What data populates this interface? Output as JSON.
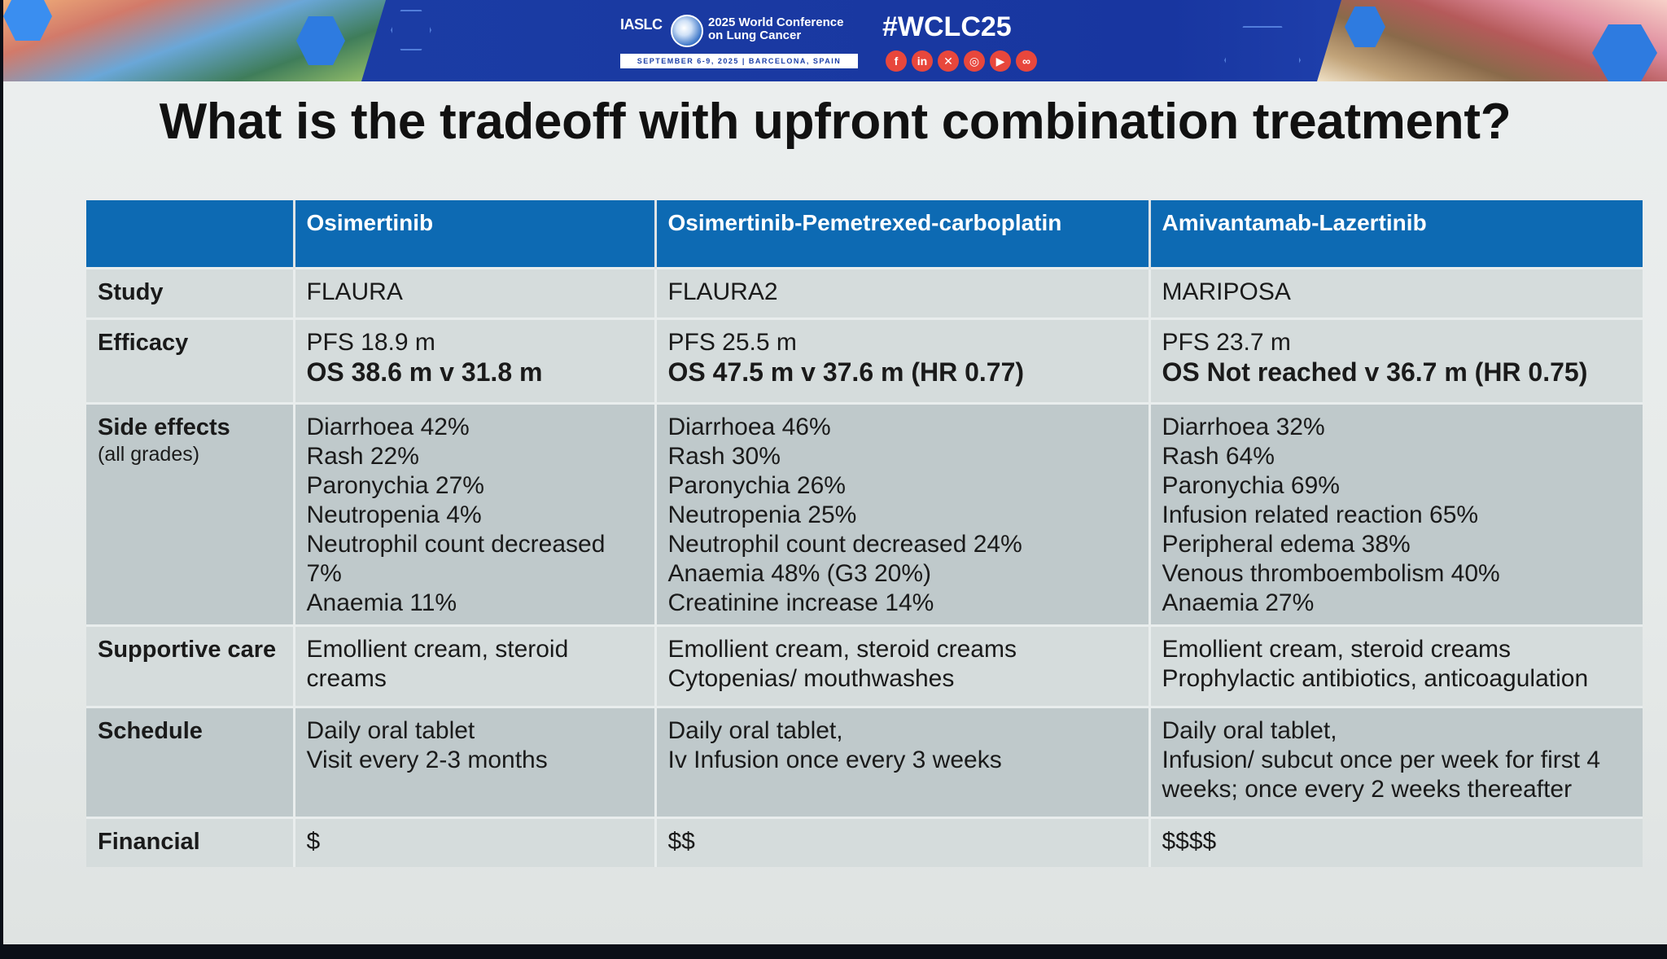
{
  "banner": {
    "org": "IASLC",
    "conference": "2025 World Conference\non Lung Cancer",
    "dates": "SEPTEMBER 6-9, 2025 | BARCELONA, SPAIN",
    "hashtag": "#WCLC25",
    "social_icons": [
      "facebook-icon",
      "linkedin-icon",
      "x-icon",
      "instagram-icon",
      "youtube-icon",
      "link-icon"
    ]
  },
  "title": "What is the tradeoff with upfront combination treatment?",
  "table": {
    "headers": [
      "",
      "Osimertinib",
      "Osimertinib-Pemetrexed-carboplatin",
      "Amivantamab-Lazertinib"
    ],
    "rows": {
      "study": {
        "label": "Study",
        "cells": [
          "FLAURA",
          "FLAURA2",
          "MARIPOSA"
        ]
      },
      "efficacy": {
        "label": "Efficacy",
        "pfs": [
          "PFS 18.9 m",
          "PFS 25.5  m",
          "PFS 23.7 m"
        ],
        "os": [
          "OS 38.6 m v 31.8 m",
          "OS 47.5 m v 37.6 m (HR 0.77)",
          "OS Not reached v 36.7 m (HR 0.75)"
        ]
      },
      "side_effects": {
        "label": "Side effects",
        "sublabel": "(all grades)",
        "col1": [
          "Diarrhoea 42%",
          "Rash 22%",
          "Paronychia 27%",
          "Neutropenia 4%",
          "Neutrophil count decreased 7%",
          "Anaemia 11%"
        ],
        "col2": [
          "Diarrhoea 46%",
          "Rash 30%",
          "Paronychia 26%",
          "Neutropenia 25%",
          "Neutrophil count decreased 24%",
          "Anaemia 48% (G3 20%)",
          "Creatinine increase 14%"
        ],
        "col3": [
          "Diarrhoea 32%",
          "Rash 64%",
          "Paronychia 69%",
          "Infusion related reaction 65%",
          "Peripheral edema 38%",
          "Venous thromboembolism 40%",
          "Anaemia 27%"
        ]
      },
      "supportive_care": {
        "label": "Supportive care",
        "col1": [
          "Emollient cream, steroid",
          "creams"
        ],
        "col2": [
          "Emollient cream, steroid creams",
          "Cytopenias/ mouthwashes"
        ],
        "col3": [
          "Emollient cream, steroid creams",
          "Prophylactic antibiotics, anticoagulation"
        ]
      },
      "schedule": {
        "label": "Schedule",
        "col1": [
          "Daily oral tablet",
          "Visit every 2-3 months"
        ],
        "col2": [
          "Daily oral tablet,",
          "Iv Infusion once every 3 weeks"
        ],
        "col3": [
          "Daily oral tablet,",
          "Infusion/ subcut once per week for first 4",
          "weeks; once every 2 weeks thereafter"
        ]
      },
      "financial": {
        "label": "Financial",
        "cells": [
          "$",
          "$$",
          "$$$$"
        ]
      }
    }
  },
  "colors": {
    "header_blue": "#0d6ab3",
    "banner_blue": "#1c3fa8",
    "row_light": "#d5dcdc",
    "row_dark": "#bfc9cb"
  }
}
